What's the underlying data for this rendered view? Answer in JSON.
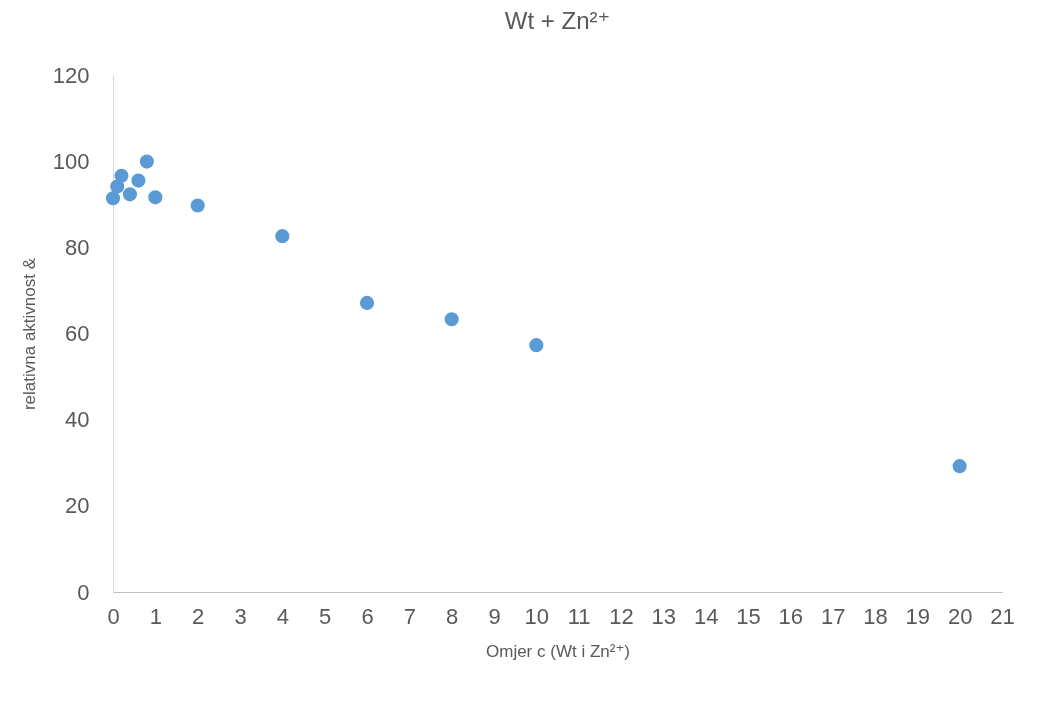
{
  "chart_data": {
    "type": "scatter",
    "title": "Wt + Zn²⁺",
    "xlabel": "Omjer c (Wt i Zn²⁺)",
    "ylabel": "relativna aktivnost &",
    "x": [
      0,
      0.1,
      0.2,
      0.4,
      0.6,
      0.8,
      1,
      2,
      4,
      6,
      8,
      10,
      20
    ],
    "series": [
      {
        "color": "#5b9bd5",
        "values": [
          91.4,
          94.1,
          96.6,
          92.3,
          95.5,
          99.9,
          91.6,
          89.7,
          82.6,
          67.1,
          63.3,
          57.3,
          29.2
        ]
      }
    ],
    "xlim": [
      0,
      21
    ],
    "xticks": [
      0,
      1,
      2,
      3,
      4,
      5,
      6,
      7,
      8,
      9,
      10,
      11,
      12,
      13,
      14,
      15,
      16,
      17,
      18,
      19,
      20,
      21
    ],
    "ylim": [
      0,
      120
    ],
    "yticks": [
      0,
      20,
      40,
      60,
      80,
      100,
      120
    ],
    "grid": false,
    "legend": false,
    "marker": "circle"
  }
}
